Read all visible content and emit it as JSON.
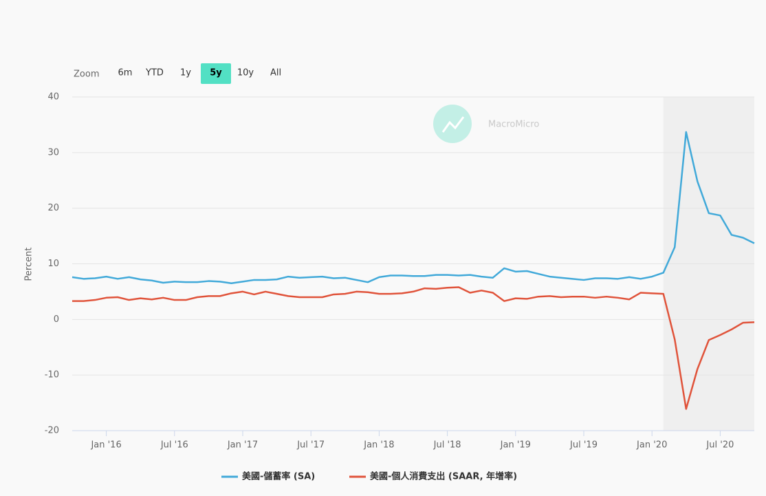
{
  "zoom": {
    "label": "Zoom",
    "options": [
      "6m",
      "YTD",
      "1y",
      "5y",
      "10y",
      "All"
    ],
    "selected": "5y"
  },
  "watermark": "MacroMicro",
  "chart_data": {
    "type": "line",
    "y_label": "Percent",
    "x": [
      "2015-10",
      "2015-11",
      "2015-12",
      "2016-01",
      "2016-02",
      "2016-03",
      "2016-04",
      "2016-05",
      "2016-06",
      "2016-07",
      "2016-08",
      "2016-09",
      "2016-10",
      "2016-11",
      "2016-12",
      "2017-01",
      "2017-02",
      "2017-03",
      "2017-04",
      "2017-05",
      "2017-06",
      "2017-07",
      "2017-08",
      "2017-09",
      "2017-10",
      "2017-11",
      "2017-12",
      "2018-01",
      "2018-02",
      "2018-03",
      "2018-04",
      "2018-05",
      "2018-06",
      "2018-07",
      "2018-08",
      "2018-09",
      "2018-10",
      "2018-11",
      "2018-12",
      "2019-01",
      "2019-02",
      "2019-03",
      "2019-04",
      "2019-05",
      "2019-06",
      "2019-07",
      "2019-08",
      "2019-09",
      "2019-10",
      "2019-11",
      "2019-12",
      "2020-01",
      "2020-02",
      "2020-03",
      "2020-04",
      "2020-05",
      "2020-06",
      "2020-07",
      "2020-08",
      "2020-09",
      "2020-10"
    ],
    "series": [
      {
        "name": "美國-儲蓄率 (SA)",
        "color": "#41a9d9",
        "values": [
          7.6,
          7.3,
          7.4,
          7.7,
          7.3,
          7.6,
          7.2,
          7.0,
          6.6,
          6.8,
          6.7,
          6.7,
          6.9,
          6.8,
          6.5,
          6.8,
          7.1,
          7.1,
          7.2,
          7.7,
          7.5,
          7.6,
          7.7,
          7.4,
          7.5,
          7.1,
          6.7,
          7.6,
          7.9,
          7.9,
          7.8,
          7.8,
          8.0,
          8.0,
          7.9,
          8.0,
          7.7,
          7.5,
          9.2,
          8.6,
          8.7,
          8.2,
          7.7,
          7.5,
          7.3,
          7.1,
          7.4,
          7.4,
          7.3,
          7.6,
          7.3,
          7.7,
          8.4,
          13.0,
          33.7,
          24.8,
          19.1,
          18.7,
          15.2,
          14.7,
          13.7
        ]
      },
      {
        "name": "美國-個人消費支出 (SAAR, 年增率)",
        "color": "#e0533a",
        "values": [
          3.3,
          3.3,
          3.5,
          3.9,
          4.0,
          3.5,
          3.8,
          3.6,
          3.9,
          3.5,
          3.5,
          4.0,
          4.2,
          4.2,
          4.7,
          5.0,
          4.5,
          5.0,
          4.6,
          4.2,
          4.0,
          4.0,
          4.0,
          4.5,
          4.6,
          5.0,
          4.9,
          4.6,
          4.6,
          4.7,
          5.0,
          5.6,
          5.5,
          5.7,
          5.8,
          4.8,
          5.2,
          4.8,
          3.3,
          3.8,
          3.7,
          4.1,
          4.2,
          4.0,
          4.1,
          4.1,
          3.9,
          4.1,
          3.9,
          3.6,
          4.8,
          4.7,
          4.6,
          -3.6,
          -16.1,
          -8.9,
          -3.7,
          -2.8,
          -1.8,
          -0.6,
          -0.5
        ]
      }
    ],
    "xlim": [
      "2015-10",
      "2020-10"
    ],
    "xticks": [
      {
        "value": "2016-01",
        "label": "Jan '16"
      },
      {
        "value": "2016-07",
        "label": "Jul '16"
      },
      {
        "value": "2017-01",
        "label": "Jan '17"
      },
      {
        "value": "2017-07",
        "label": "Jul '17"
      },
      {
        "value": "2018-01",
        "label": "Jan '18"
      },
      {
        "value": "2018-07",
        "label": "Jul '18"
      },
      {
        "value": "2019-01",
        "label": "Jan '19"
      },
      {
        "value": "2019-07",
        "label": "Jul '19"
      },
      {
        "value": "2020-01",
        "label": "Jan '20"
      },
      {
        "value": "2020-07",
        "label": "Jul '20"
      }
    ],
    "ylim": [
      -20,
      40
    ],
    "yticks": [
      -20,
      -10,
      0,
      10,
      20,
      30,
      40
    ],
    "highlight_range": [
      "2020-02",
      "2020-10"
    ],
    "grid": true,
    "legend": "bottom"
  }
}
